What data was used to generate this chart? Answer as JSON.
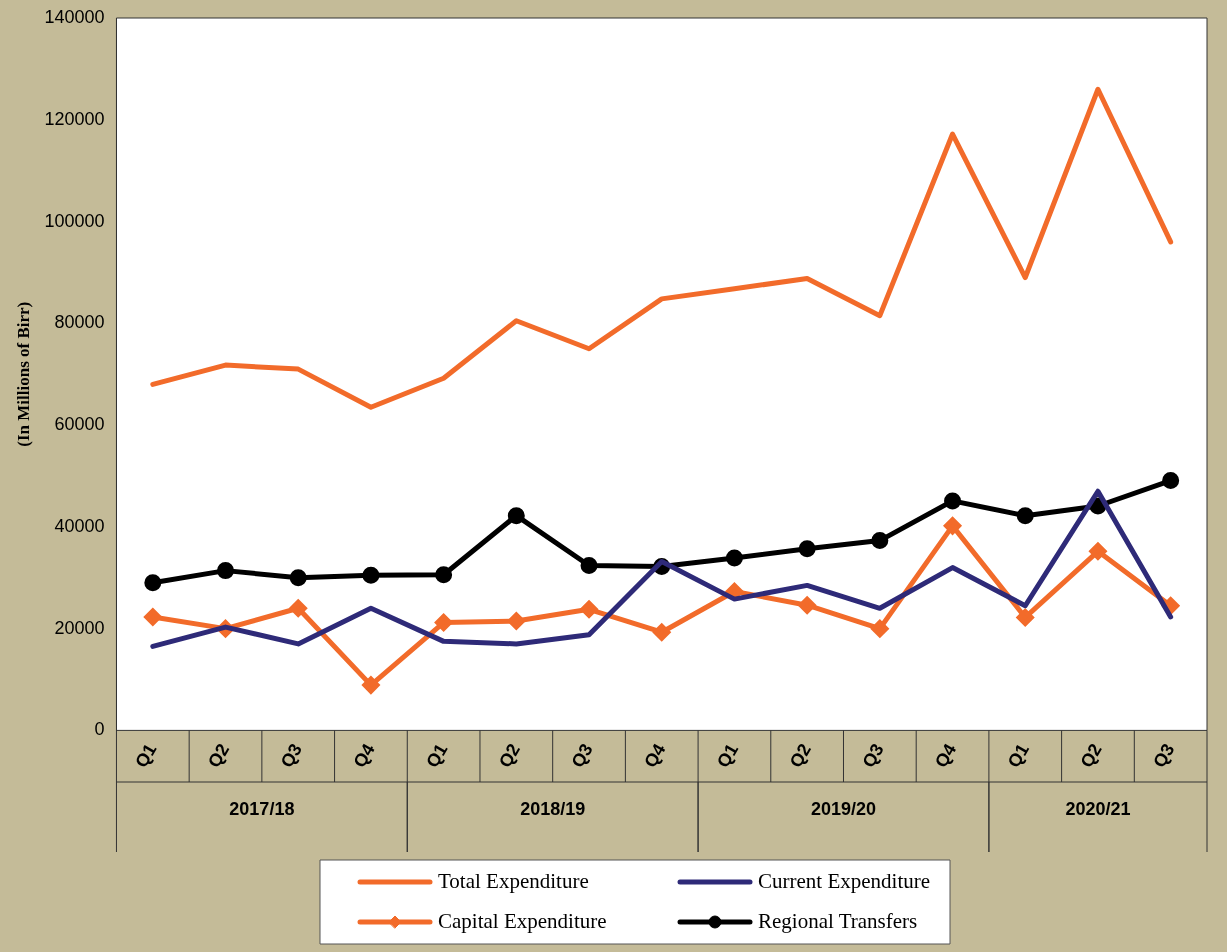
{
  "chart_data": {
    "type": "line",
    "ylabel": "(In Millions of Birr)",
    "categories": [
      "Q1",
      "Q2",
      "Q3",
      "Q4",
      "Q1",
      "Q2",
      "Q3",
      "Q4",
      "Q1",
      "Q2",
      "Q3",
      "Q4",
      "Q1",
      "Q2",
      "Q3"
    ],
    "annotations": [
      "2017/18",
      "2018/19",
      "2019/20",
      "2020/21"
    ],
    "ylim": [
      0,
      140000
    ],
    "yticks": [
      0,
      20000,
      40000,
      60000,
      80000,
      100000,
      120000,
      140000
    ],
    "grid": false,
    "legend": "bottom",
    "marker": "none",
    "line_style": "solid",
    "series": [
      {
        "name": "Total Expenditure",
        "color": "#f26b2a",
        "values": [
          68000,
          71800,
          71000,
          63500,
          69200,
          80500,
          75000,
          84800,
          86800,
          88800,
          81500,
          117200,
          89000,
          126000,
          96000
        ]
      },
      {
        "name": "Current Expenditure",
        "color": "#2e2a78",
        "values": [
          16500,
          20300,
          17000,
          24000,
          17500,
          17000,
          18800,
          33200,
          25800,
          28500,
          24000,
          32000,
          24500,
          47000,
          22300
        ]
      },
      {
        "name": "Capital Expenditure",
        "color": "#f26b2a",
        "marker": "diamond",
        "values": [
          22300,
          20000,
          24000,
          8900,
          21200,
          21500,
          23800,
          19300,
          27300,
          24600,
          20000,
          40200,
          22200,
          35200,
          24500
        ]
      },
      {
        "name": "Regional Transfers",
        "color": "#000000",
        "marker": "circle",
        "values": [
          29000,
          31400,
          30000,
          30500,
          30600,
          42200,
          32400,
          32200,
          33900,
          35700,
          37300,
          45100,
          42200,
          44100,
          49100
        ]
      }
    ]
  }
}
